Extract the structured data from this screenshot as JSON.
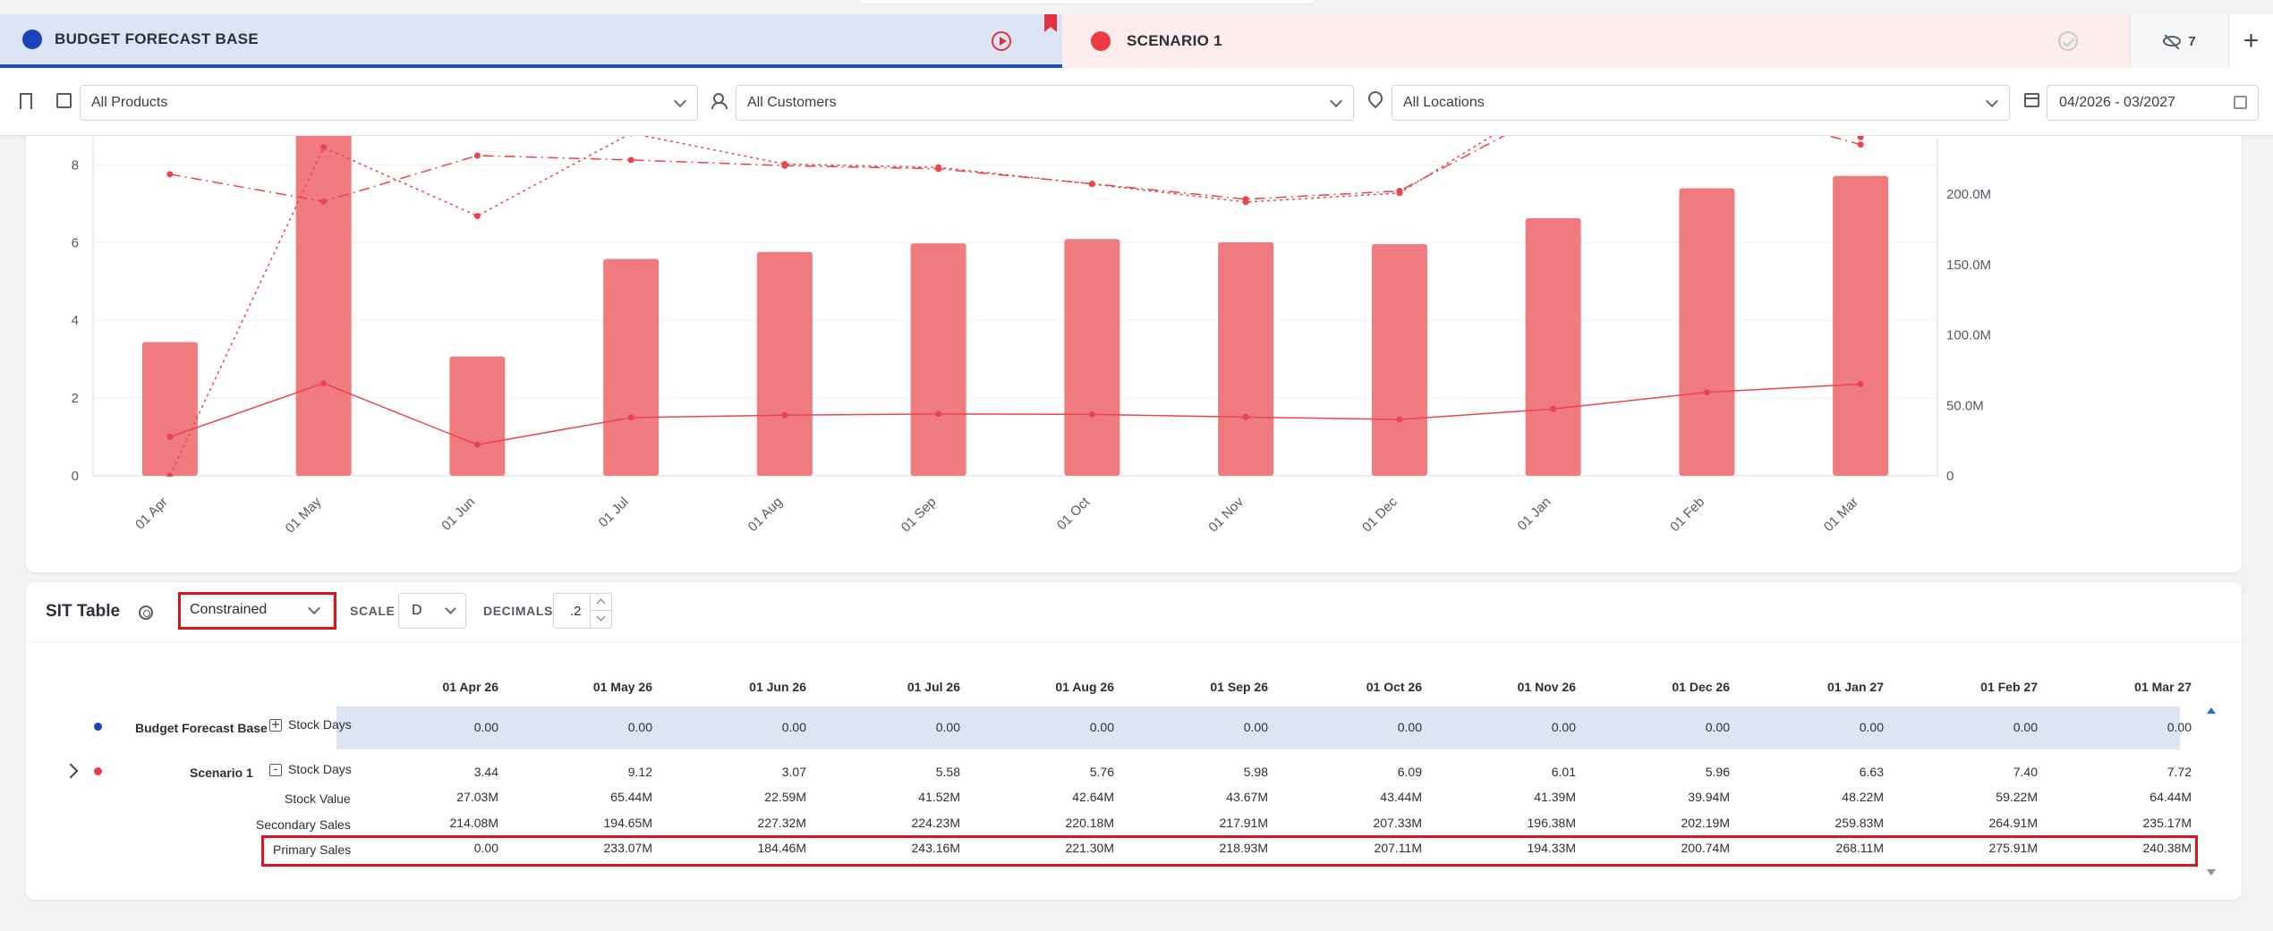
{
  "tabs": {
    "base_label": "BUDGET FORECAST BASE",
    "scenario_label": "SCENARIO 1",
    "hidden_count": "7",
    "add_label": "+"
  },
  "filters": {
    "products": "All Products",
    "customers": "All Customers",
    "locations": "All Locations",
    "date_range": "04/2026 - 03/2027"
  },
  "chart_data": {
    "type": "bar",
    "categories": [
      "01 Apr",
      "01 May",
      "01 Jun",
      "01 Jul",
      "01 Aug",
      "01 Sep",
      "01 Oct",
      "01 Nov",
      "01 Dec",
      "01 Jan",
      "01 Feb",
      "01 Mar"
    ],
    "y_left_ticks": [
      "0",
      "2",
      "4",
      "6",
      "8"
    ],
    "y_left_range": [
      0,
      8.7
    ],
    "y_right_ticks": [
      "0",
      "50.0M",
      "100.0M",
      "150.0M",
      "200.0M"
    ],
    "y_right_range": [
      0,
      240
    ],
    "bar_color": "#f07b7e",
    "line_color": "#e8454d",
    "series": [
      {
        "type": "bar",
        "axis": "left",
        "values": [
          3.44,
          9.12,
          3.07,
          5.58,
          5.76,
          5.98,
          6.09,
          6.01,
          5.96,
          6.63,
          7.4,
          7.72
        ]
      },
      {
        "type": "line",
        "style": "solid",
        "axis": "left",
        "values": [
          1.0,
          2.38,
          0.8,
          1.5,
          1.56,
          1.59,
          1.58,
          1.51,
          1.45,
          1.72,
          2.15,
          2.36
        ]
      },
      {
        "type": "line",
        "style": "dashdot",
        "axis": "right",
        "values": [
          214.08,
          194.65,
          227.32,
          224.23,
          220.18,
          217.91,
          207.33,
          196.38,
          202.19,
          259.83,
          264.91,
          235.17
        ]
      },
      {
        "type": "line",
        "style": "dotted",
        "axis": "right",
        "values": [
          0.0,
          233.07,
          184.46,
          243.16,
          221.3,
          218.93,
          207.11,
          194.33,
          200.74,
          268.11,
          275.91,
          240.38
        ]
      }
    ]
  },
  "sit": {
    "title": "SIT Table",
    "view": "Constrained",
    "scale_label": "SCALE",
    "scale_value": "D",
    "decimals_label": "DECIMALS",
    "decimals_value": ".2",
    "columns": [
      "01 Apr 26",
      "01 May 26",
      "01 Jun 26",
      "01 Jul 26",
      "01 Aug 26",
      "01 Sep 26",
      "01 Oct 26",
      "01 Nov 26",
      "01 Dec 26",
      "01 Jan 27",
      "01 Feb 27",
      "01 Mar 27"
    ],
    "base": {
      "name": "Budget Forecast Base",
      "toggle": "+",
      "rows": [
        {
          "label": "Stock Days",
          "values": [
            "0.00",
            "0.00",
            "0.00",
            "0.00",
            "0.00",
            "0.00",
            "0.00",
            "0.00",
            "0.00",
            "0.00",
            "0.00",
            "0.00"
          ]
        }
      ]
    },
    "scenario": {
      "name": "Scenario 1",
      "toggle": "-",
      "rows": [
        {
          "label": "Stock Days",
          "values": [
            "3.44",
            "9.12",
            "3.07",
            "5.58",
            "5.76",
            "5.98",
            "6.09",
            "6.01",
            "5.96",
            "6.63",
            "7.40",
            "7.72"
          ]
        },
        {
          "label": "Stock Value",
          "values": [
            "27.03M",
            "65.44M",
            "22.59M",
            "41.52M",
            "42.64M",
            "43.67M",
            "43.44M",
            "41.39M",
            "39.94M",
            "48.22M",
            "59.22M",
            "64.44M"
          ]
        },
        {
          "label": "Secondary Sales",
          "values": [
            "214.08M",
            "194.65M",
            "227.32M",
            "224.23M",
            "220.18M",
            "217.91M",
            "207.33M",
            "196.38M",
            "202.19M",
            "259.83M",
            "264.91M",
            "235.17M"
          ]
        },
        {
          "label": "Primary Sales",
          "values": [
            "0.00",
            "233.07M",
            "184.46M",
            "243.16M",
            "221.30M",
            "218.93M",
            "207.11M",
            "194.33M",
            "200.74M",
            "268.11M",
            "275.91M",
            "240.38M"
          ]
        }
      ]
    }
  }
}
